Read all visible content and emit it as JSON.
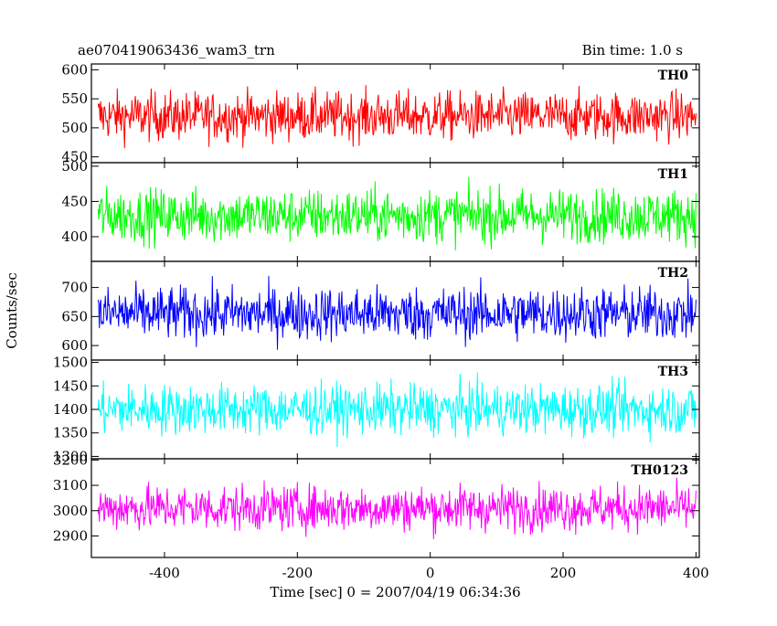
{
  "chart_data": {
    "type": "line",
    "title": "ae070419063436_wam3_trn",
    "bin_time_label": "Bin time: 1.0 s",
    "xlabel": "Time [sec] 0 = 2007/04/19 06:34:36",
    "ylabel": "Counts/sec",
    "xlim": [
      -510,
      405
    ],
    "x_ticks": [
      -400,
      -200,
      0,
      200,
      400
    ],
    "x_range_data": [
      -500,
      400
    ],
    "grid": false,
    "panels": [
      {
        "name": "TH0",
        "color": "#ff0000",
        "ylim": [
          440,
          610
        ],
        "y_ticks": [
          450,
          500,
          550,
          600
        ],
        "mean": 520,
        "amplitude": 30
      },
      {
        "name": "TH1",
        "color": "#00ff00",
        "ylim": [
          365,
          505
        ],
        "y_ticks": [
          400,
          450,
          500
        ],
        "mean": 430,
        "amplitude": 27
      },
      {
        "name": "TH2",
        "color": "#0000ff",
        "ylim": [
          575,
          745
        ],
        "y_ticks": [
          600,
          650,
          700
        ],
        "mean": 655,
        "amplitude": 33
      },
      {
        "name": "TH3",
        "color": "#00ffff",
        "ylim": [
          1295,
          1505
        ],
        "y_ticks": [
          1300,
          1350,
          1400,
          1450,
          1500
        ],
        "mean": 1400,
        "amplitude": 38
      },
      {
        "name": "TH0123",
        "color": "#ff00ff",
        "ylim": [
          2815,
          3205
        ],
        "y_ticks": [
          2900,
          3000,
          3100,
          3200
        ],
        "mean": 3010,
        "amplitude": 64
      }
    ]
  }
}
